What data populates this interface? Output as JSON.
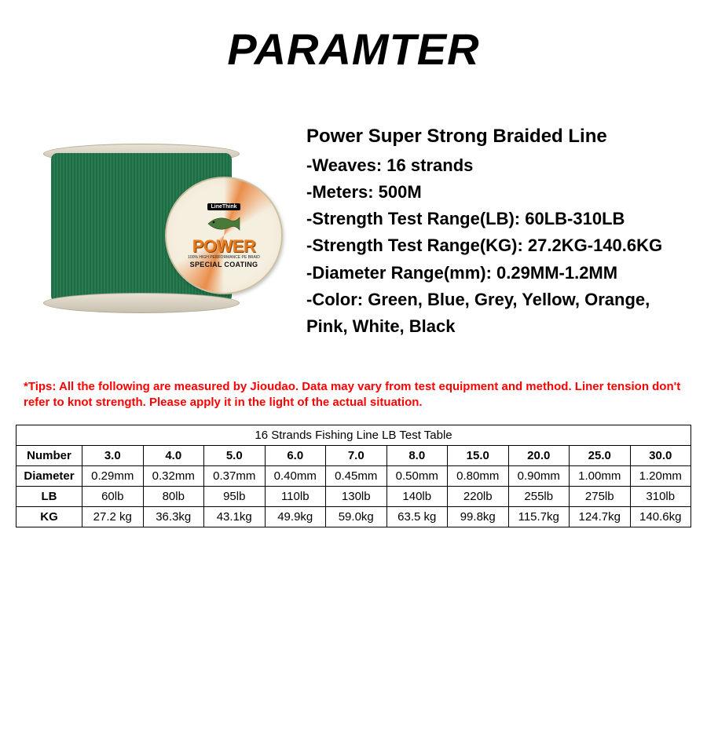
{
  "title": "PARAMTER",
  "product": {
    "name": "Power Super Strong Braided Line",
    "specs": [
      "-Weaves: 16 strands",
      "-Meters: 500M",
      "-Strength Test Range(LB): 60LB-310LB",
      "-Strength Test Range(KG): 27.2KG-140.6KG",
      "-Diameter Range(mm): 0.29MM-1.2MM",
      "-Color: Green, Blue, Grey, Yellow, Orange, Pink, White, Black"
    ]
  },
  "spool": {
    "brand": "LineThink",
    "main": "POWER",
    "sub1": "100% HIGH PERFORMANCE PE BRAID",
    "sub2": "SPECIAL COATING",
    "line_color": "#2d8a5a",
    "flange_color": "#e8e2d4",
    "accent_color": "#e57b1e"
  },
  "tips": "*Tips: All the following are measured by Jioudao. Data may vary from test equipment and method. Liner tension don't refer to knot strength. Please apply it in the light of the actual situation.",
  "table": {
    "caption": "16 Strands Fishing Line LB Test Table",
    "row_headers": [
      "Number",
      "Diameter",
      "LB",
      "KG"
    ],
    "columns": [
      "3.0",
      "4.0",
      "5.0",
      "6.0",
      "7.0",
      "8.0",
      "15.0",
      "20.0",
      "25.0",
      "30.0"
    ],
    "rows": {
      "Diameter": [
        "0.29mm",
        "0.32mm",
        "0.37mm",
        "0.40mm",
        "0.45mm",
        "0.50mm",
        "0.80mm",
        "0.90mm",
        "1.00mm",
        "1.20mm"
      ],
      "LB": [
        "60lb",
        "80lb",
        "95lb",
        "110lb",
        "130lb",
        "140lb",
        "220lb",
        "255lb",
        "275lb",
        "310lb"
      ],
      "KG": [
        "27.2 kg",
        "36.3kg",
        "43.1kg",
        "49.9kg",
        "59.0kg",
        "63.5 kg",
        "99.8kg",
        "115.7kg",
        "124.7kg",
        "140.6kg"
      ]
    },
    "border_color": "#000000",
    "font_size_pt": 11
  },
  "colors": {
    "title": "#000000",
    "spec_text": "#000000",
    "tips_text": "#ff0000",
    "background": "#ffffff"
  }
}
